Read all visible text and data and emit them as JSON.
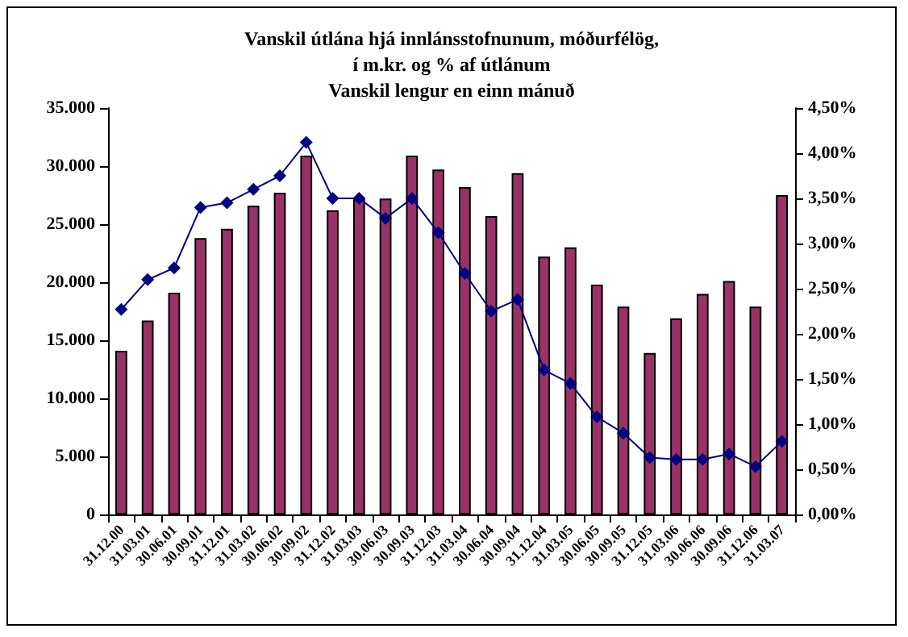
{
  "chart_data": {
    "type": "bar",
    "title": "Vanskil útlána hjá innlánsstofnunum, móðurfélög,\ní m.kr. og % af útlánum\nVanskil lengur en einn mánuð",
    "categories": [
      "31.12.00",
      "31.03.01",
      "30.06.01",
      "30.09.01",
      "31.12.01",
      "31.03.02",
      "30.06.02",
      "30.09.02",
      "31.12.02",
      "31.03.03",
      "30.06.03",
      "30.09.03",
      "31.12.03",
      "31.03.04",
      "30.06.04",
      "30.09.04",
      "31.12.04",
      "31.03.05",
      "30.06.05",
      "30.09.05",
      "31.12.05",
      "31.03.06",
      "30.06.06",
      "30.09.06",
      "31.12.06",
      "31.03.07"
    ],
    "series": [
      {
        "color": "#993366",
        "values": [
          14100,
          16700,
          19100,
          23800,
          24600,
          26600,
          27700,
          30900,
          26200,
          27300,
          27200,
          30900,
          29700,
          28200,
          25700,
          29400,
          22200,
          23000,
          19800,
          17900,
          13900,
          16900,
          19000,
          20100,
          17900,
          27500
        ]
      },
      {
        "type": "line",
        "axis": "y2",
        "color": "#000080",
        "marker": "diamond",
        "line_style": "solid",
        "values": [
          2.27,
          2.6,
          2.73,
          3.4,
          3.45,
          3.6,
          3.75,
          4.12,
          3.5,
          3.5,
          3.28,
          3.5,
          3.12,
          2.67,
          2.25,
          2.38,
          1.6,
          1.45,
          1.08,
          0.9,
          0.63,
          0.61,
          0.61,
          0.67,
          0.53,
          0.81
        ]
      }
    ],
    "ylim": [
      0,
      35000
    ],
    "yticks": [
      {
        "value": 0,
        "label": "0"
      },
      {
        "value": 5000,
        "label": "5.000"
      },
      {
        "value": 10000,
        "label": "10.000"
      },
      {
        "value": 15000,
        "label": "15.000"
      },
      {
        "value": 20000,
        "label": "20.000"
      },
      {
        "value": 25000,
        "label": "25.000"
      },
      {
        "value": 30000,
        "label": "30.000"
      },
      {
        "value": 35000,
        "label": "35.000"
      }
    ],
    "y2lim": [
      0,
      4.5
    ],
    "y2ticks": [
      {
        "value": 0,
        "label": "0,00%"
      },
      {
        "value": 0.5,
        "label": "0,50%"
      },
      {
        "value": 1,
        "label": "1,00%"
      },
      {
        "value": 1.5,
        "label": "1,50%"
      },
      {
        "value": 2,
        "label": "2,00%"
      },
      {
        "value": 2.5,
        "label": "2,50%"
      },
      {
        "value": 3,
        "label": "3,00%"
      },
      {
        "value": 3.5,
        "label": "3,50%"
      },
      {
        "value": 4,
        "label": "4,00%"
      },
      {
        "value": 4.5,
        "label": "4,50%"
      }
    ],
    "grid": false
  }
}
